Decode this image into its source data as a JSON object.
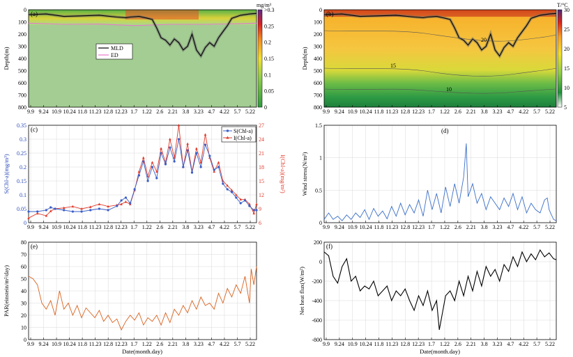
{
  "chart_data": [
    {
      "panel": "(a)",
      "type": "heatmap",
      "ylabel": "Depth(m)",
      "yticks": [
        "0",
        "100",
        "200",
        "300",
        "400",
        "500",
        "600",
        "700",
        "800"
      ],
      "ylim": [
        800,
        0
      ],
      "xticks": [
        "9.9",
        "9.24",
        "10.9",
        "10.24",
        "11.8",
        "11.23",
        "12.8",
        "12.23",
        "1.7",
        "1.22",
        "2.6",
        "2.21",
        "3.8",
        "3.23",
        "4.7",
        "4.22",
        "5.7",
        "5.22"
      ],
      "colorbar": {
        "unit": "mg/m³",
        "ticks": [
          ">0.3",
          "0.25",
          "0.2",
          "0.15",
          "0.1",
          "0.05",
          "0"
        ],
        "range": [
          0,
          0.3
        ]
      },
      "legend": [
        "MLD",
        "ED"
      ],
      "series": [
        {
          "name": "MLD",
          "x": [
            0,
            20,
            40,
            60,
            80,
            100,
            110,
            115,
            125,
            135,
            140,
            145,
            150,
            155,
            160,
            165,
            170,
            175,
            180,
            185,
            190,
            195,
            200,
            205,
            210,
            215,
            220,
            225,
            230,
            240,
            250,
            258
          ],
          "values": [
            40,
            35,
            55,
            50,
            45,
            60,
            65,
            60,
            55,
            70,
            80,
            150,
            230,
            250,
            290,
            240,
            270,
            330,
            300,
            200,
            330,
            380,
            310,
            270,
            300,
            230,
            180,
            130,
            70,
            45,
            35,
            30
          ]
        },
        {
          "name": "ED",
          "x": [
            0,
            40,
            80,
            120,
            160,
            200,
            240,
            258
          ],
          "values": [
            110,
            120,
            118,
            130,
            120,
            120,
            115,
            110
          ]
        }
      ]
    },
    {
      "panel": "(b)",
      "type": "heatmap",
      "ylabel": "Depth(m)",
      "yticks": [
        "0",
        "100",
        "200",
        "300",
        "400",
        "500",
        "600",
        "700",
        "800"
      ],
      "ylim": [
        800,
        0
      ],
      "xticks": [
        "9.9",
        "9.24",
        "10.9",
        "10.24",
        "11.8",
        "11.23",
        "12.8",
        "12.23",
        "1.7",
        "1.22",
        "2.6",
        "2.21",
        "3.8",
        "3.23",
        "4.7",
        "4.22",
        "5.7",
        "5.22"
      ],
      "colorbar": {
        "unit": "T/°C",
        "ticks": [
          "30",
          "25",
          "20",
          "15",
          "10",
          "5"
        ],
        "range": [
          5,
          30
        ]
      },
      "contour_labels": [
        "20",
        "15",
        "10"
      ],
      "series": [
        {
          "name": "MLD",
          "x": [
            0,
            20,
            40,
            60,
            80,
            100,
            110,
            115,
            125,
            135,
            140,
            145,
            150,
            155,
            160,
            165,
            170,
            175,
            180,
            185,
            190,
            195,
            200,
            205,
            210,
            215,
            220,
            225,
            230,
            240,
            250,
            258
          ],
          "values": [
            40,
            35,
            55,
            50,
            45,
            60,
            65,
            60,
            55,
            70,
            80,
            150,
            230,
            250,
            290,
            240,
            270,
            330,
            300,
            200,
            330,
            380,
            310,
            270,
            300,
            230,
            180,
            130,
            70,
            45,
            35,
            30
          ]
        }
      ]
    },
    {
      "panel": "(c)",
      "type": "line",
      "ylabel": "S(Chl-a)(mg/m³)",
      "ylabel_right": "I(Chl-a)(mg/m²)",
      "yticks": [
        "0",
        "0.05",
        "0.1",
        "0.15",
        "0.2",
        "0.25",
        "0.3",
        "0.35"
      ],
      "ylim": [
        0,
        0.35
      ],
      "yticks_right": [
        "6",
        "9",
        "12",
        "15",
        "18",
        "21",
        "24",
        "27"
      ],
      "ylim_right": [
        6,
        27
      ],
      "xticks": [
        "9.9",
        "9.24",
        "10.9",
        "10.24",
        "11.8",
        "11.23",
        "12.8",
        "12.23",
        "1.7",
        "1.22",
        "2.6",
        "2.21",
        "3.8",
        "3.23",
        "4.7",
        "4.22",
        "5.7",
        "5.22"
      ],
      "legend": [
        "S(Chl-a)",
        "I(Chl-a)"
      ],
      "series": [
        {
          "name": "S(Chl-a)",
          "x": [
            0,
            10,
            20,
            25,
            30,
            40,
            50,
            60,
            70,
            80,
            90,
            100,
            105,
            110,
            115,
            120,
            125,
            130,
            135,
            140,
            145,
            150,
            155,
            160,
            165,
            170,
            175,
            180,
            185,
            190,
            195,
            200,
            205,
            210,
            215,
            220,
            225,
            230,
            235,
            240,
            245,
            250,
            255,
            258
          ],
          "values": [
            0.04,
            0.04,
            0.045,
            0.055,
            0.05,
            0.045,
            0.04,
            0.04,
            0.045,
            0.05,
            0.045,
            0.06,
            0.08,
            0.09,
            0.07,
            0.12,
            0.17,
            0.22,
            0.15,
            0.2,
            0.16,
            0.25,
            0.21,
            0.27,
            0.22,
            0.3,
            0.2,
            0.26,
            0.18,
            0.25,
            0.2,
            0.28,
            0.24,
            0.19,
            0.2,
            0.14,
            0.12,
            0.11,
            0.09,
            0.07,
            0.08,
            0.06,
            0.045,
            0.045
          ]
        },
        {
          "name": "I(Chl-a)",
          "x": [
            0,
            10,
            20,
            25,
            30,
            40,
            50,
            60,
            70,
            80,
            90,
            100,
            105,
            110,
            115,
            120,
            125,
            130,
            135,
            140,
            145,
            150,
            155,
            160,
            165,
            170,
            175,
            180,
            185,
            190,
            195,
            200,
            205,
            210,
            215,
            220,
            225,
            230,
            235,
            240,
            245,
            250,
            255,
            258
          ],
          "values": [
            7,
            8,
            7.5,
            8.5,
            9,
            9.2,
            9.5,
            9,
            9.4,
            10,
            9.5,
            9.8,
            10,
            10.5,
            10,
            13,
            17,
            20,
            16,
            19,
            17,
            22,
            19,
            24,
            20,
            27,
            18,
            23,
            17,
            22,
            19,
            25,
            20,
            17,
            19,
            15,
            14,
            13,
            12,
            11,
            11,
            10,
            8,
            10
          ]
        }
      ]
    },
    {
      "panel": "(d)",
      "type": "line",
      "ylabel": "Wind stress(N/m²)",
      "yticks": [
        "0",
        "0.5",
        "1",
        "1.5"
      ],
      "ylim": [
        0,
        1.5
      ],
      "xticks": [
        "9.9",
        "9.24",
        "10.9",
        "10.24",
        "11.8",
        "11.23",
        "12.8",
        "12.23",
        "1.7",
        "1.22",
        "2.6",
        "2.21",
        "3.8",
        "3.23",
        "4.7",
        "4.22",
        "5.7",
        "5.22"
      ],
      "series": [
        {
          "name": "",
          "x": [
            0,
            5,
            10,
            15,
            20,
            25,
            30,
            35,
            40,
            45,
            50,
            55,
            60,
            65,
            70,
            75,
            80,
            85,
            90,
            95,
            100,
            105,
            110,
            115,
            120,
            125,
            130,
            135,
            140,
            145,
            150,
            155,
            158,
            160,
            165,
            170,
            175,
            180,
            185,
            190,
            195,
            200,
            205,
            210,
            215,
            220,
            225,
            230,
            235,
            240,
            245,
            248,
            250,
            255,
            258
          ],
          "values": [
            0.05,
            0.15,
            0.05,
            0.1,
            0.03,
            0.12,
            0.05,
            0.15,
            0.08,
            0.2,
            0.05,
            0.22,
            0.1,
            0.18,
            0.06,
            0.25,
            0.1,
            0.3,
            0.12,
            0.28,
            0.15,
            0.35,
            0.1,
            0.5,
            0.2,
            0.45,
            0.15,
            0.55,
            0.25,
            0.6,
            0.3,
            0.7,
            1.22,
            0.4,
            0.6,
            0.3,
            0.45,
            0.2,
            0.4,
            0.3,
            0.2,
            0.38,
            0.25,
            0.45,
            0.2,
            0.4,
            0.15,
            0.3,
            0.2,
            0.15,
            0.35,
            0.38,
            0.2,
            0.05,
            0.03
          ]
        }
      ]
    },
    {
      "panel": "(e)",
      "type": "line",
      "ylabel": "PAR(einstein/m²/day)",
      "yticks": [
        "0",
        "10",
        "20",
        "30",
        "40",
        "50",
        "60",
        "70",
        "80"
      ],
      "ylim": [
        0,
        80
      ],
      "xticks": [
        "9.9",
        "9.24",
        "10.9",
        "10.24",
        "11.8",
        "11.23",
        "12.8",
        "12.23",
        "1.7",
        "1.22",
        "2.6",
        "2.21",
        "3.8",
        "3.23",
        "4.7",
        "4.22",
        "5.7",
        "5.22"
      ],
      "xlabel": "Date(month.day)",
      "series": [
        {
          "name": "",
          "x": [
            0,
            5,
            10,
            15,
            20,
            25,
            30,
            35,
            40,
            45,
            50,
            55,
            60,
            65,
            70,
            75,
            80,
            85,
            90,
            95,
            100,
            105,
            110,
            115,
            120,
            125,
            130,
            135,
            140,
            145,
            150,
            155,
            160,
            165,
            170,
            175,
            180,
            185,
            190,
            195,
            200,
            205,
            210,
            215,
            220,
            225,
            230,
            235,
            240,
            245,
            250,
            252,
            255,
            258
          ],
          "values": [
            52,
            50,
            45,
            30,
            25,
            32,
            20,
            40,
            25,
            30,
            20,
            28,
            18,
            26,
            22,
            18,
            24,
            15,
            20,
            14,
            17,
            8,
            15,
            20,
            16,
            22,
            12,
            18,
            15,
            20,
            12,
            22,
            14,
            25,
            20,
            28,
            22,
            32,
            25,
            35,
            28,
            30,
            25,
            38,
            30,
            42,
            35,
            45,
            38,
            52,
            30,
            58,
            45,
            60
          ]
        }
      ]
    },
    {
      "panel": "(f)",
      "type": "line",
      "ylabel": "Net heat flux(W/m²)",
      "yticks": [
        "200",
        "0",
        "-200",
        "-400",
        "-600",
        "-800"
      ],
      "ylim": [
        -800,
        200
      ],
      "xticks": [
        "9.9",
        "9.24",
        "10.9",
        "10.24",
        "11.8",
        "11.23",
        "12.8",
        "12.23",
        "1.7",
        "1.22",
        "2.6",
        "2.21",
        "3.8",
        "3.23",
        "4.7",
        "4.22",
        "5.7",
        "5.22"
      ],
      "xlabel": "Date(month.day)",
      "series": [
        {
          "name": "",
          "x": [
            0,
            5,
            10,
            15,
            20,
            25,
            30,
            35,
            40,
            45,
            50,
            55,
            60,
            65,
            70,
            75,
            80,
            85,
            90,
            95,
            100,
            105,
            110,
            115,
            120,
            125,
            128,
            130,
            135,
            140,
            145,
            150,
            155,
            160,
            165,
            170,
            175,
            180,
            185,
            190,
            195,
            200,
            205,
            210,
            215,
            220,
            225,
            230,
            235,
            240,
            245,
            250,
            255,
            258
          ],
          "values": [
            100,
            60,
            -150,
            -220,
            -50,
            30,
            -200,
            -150,
            -300,
            -250,
            -280,
            -200,
            -350,
            -300,
            -250,
            -400,
            -300,
            -350,
            -280,
            -400,
            -500,
            -350,
            -450,
            -300,
            -500,
            -400,
            -700,
            -600,
            -350,
            -300,
            -400,
            -200,
            -350,
            -150,
            -300,
            -100,
            -250,
            -50,
            -150,
            -80,
            -200,
            -30,
            -100,
            50,
            -50,
            100,
            0,
            80,
            20,
            120,
            50,
            90,
            30,
            20
          ]
        }
      ]
    }
  ]
}
